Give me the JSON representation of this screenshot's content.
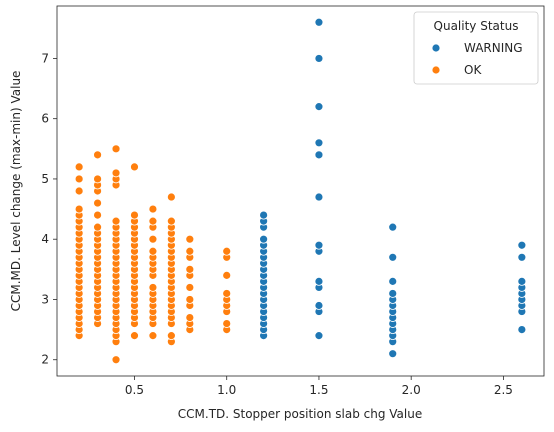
{
  "chart_data": {
    "type": "scatter",
    "title": "",
    "xlabel": "CCM.TD. Stopper position slab chg Value",
    "ylabel": "CCM.MD. Level change (max-min) Value",
    "xlim": [
      0.08,
      2.72
    ],
    "ylim": [
      1.73,
      7.87
    ],
    "xticks": [
      "0.5",
      "1.0",
      "1.5",
      "2.0",
      "2.5"
    ],
    "yticks": [
      "2",
      "3",
      "4",
      "5",
      "6",
      "7"
    ],
    "grid": false,
    "legend": {
      "title": "Quality Status",
      "placement": "top-right",
      "entries": [
        "WARNING",
        "OK"
      ]
    },
    "colors": {
      "WARNING": "#1f77b4",
      "OK": "#ff7f0e"
    },
    "series": [
      {
        "name": "OK",
        "color": "#ff7f0e",
        "points": [
          [
            0.2,
            2.4
          ],
          [
            0.2,
            2.5
          ],
          [
            0.2,
            2.6
          ],
          [
            0.2,
            2.7
          ],
          [
            0.2,
            2.8
          ],
          [
            0.2,
            2.9
          ],
          [
            0.2,
            3.0
          ],
          [
            0.2,
            3.1
          ],
          [
            0.2,
            3.2
          ],
          [
            0.2,
            3.3
          ],
          [
            0.2,
            3.4
          ],
          [
            0.2,
            3.5
          ],
          [
            0.2,
            3.6
          ],
          [
            0.2,
            3.7
          ],
          [
            0.2,
            3.8
          ],
          [
            0.2,
            3.9
          ],
          [
            0.2,
            4.0
          ],
          [
            0.2,
            4.1
          ],
          [
            0.2,
            4.2
          ],
          [
            0.2,
            4.3
          ],
          [
            0.2,
            4.4
          ],
          [
            0.2,
            4.5
          ],
          [
            0.2,
            4.8
          ],
          [
            0.2,
            5.0
          ],
          [
            0.2,
            5.2
          ],
          [
            0.3,
            2.6
          ],
          [
            0.3,
            2.7
          ],
          [
            0.3,
            2.8
          ],
          [
            0.3,
            2.9
          ],
          [
            0.3,
            3.0
          ],
          [
            0.3,
            3.1
          ],
          [
            0.3,
            3.2
          ],
          [
            0.3,
            3.3
          ],
          [
            0.3,
            3.4
          ],
          [
            0.3,
            3.5
          ],
          [
            0.3,
            3.6
          ],
          [
            0.3,
            3.7
          ],
          [
            0.3,
            3.8
          ],
          [
            0.3,
            3.9
          ],
          [
            0.3,
            4.0
          ],
          [
            0.3,
            4.1
          ],
          [
            0.3,
            4.2
          ],
          [
            0.3,
            4.4
          ],
          [
            0.3,
            4.6
          ],
          [
            0.3,
            4.8
          ],
          [
            0.3,
            4.9
          ],
          [
            0.3,
            5.0
          ],
          [
            0.3,
            5.4
          ],
          [
            0.4,
            2.0
          ],
          [
            0.4,
            2.3
          ],
          [
            0.4,
            2.4
          ],
          [
            0.4,
            2.5
          ],
          [
            0.4,
            2.6
          ],
          [
            0.4,
            2.7
          ],
          [
            0.4,
            2.8
          ],
          [
            0.4,
            2.9
          ],
          [
            0.4,
            3.0
          ],
          [
            0.4,
            3.1
          ],
          [
            0.4,
            3.2
          ],
          [
            0.4,
            3.3
          ],
          [
            0.4,
            3.4
          ],
          [
            0.4,
            3.5
          ],
          [
            0.4,
            3.6
          ],
          [
            0.4,
            3.7
          ],
          [
            0.4,
            3.8
          ],
          [
            0.4,
            3.9
          ],
          [
            0.4,
            4.0
          ],
          [
            0.4,
            4.1
          ],
          [
            0.4,
            4.2
          ],
          [
            0.4,
            4.3
          ],
          [
            0.4,
            4.9
          ],
          [
            0.4,
            5.0
          ],
          [
            0.4,
            5.1
          ],
          [
            0.4,
            5.5
          ],
          [
            0.5,
            2.4
          ],
          [
            0.5,
            2.6
          ],
          [
            0.5,
            2.7
          ],
          [
            0.5,
            2.8
          ],
          [
            0.5,
            2.9
          ],
          [
            0.5,
            3.0
          ],
          [
            0.5,
            3.1
          ],
          [
            0.5,
            3.2
          ],
          [
            0.5,
            3.3
          ],
          [
            0.5,
            3.4
          ],
          [
            0.5,
            3.5
          ],
          [
            0.5,
            3.6
          ],
          [
            0.5,
            3.7
          ],
          [
            0.5,
            3.8
          ],
          [
            0.5,
            3.9
          ],
          [
            0.5,
            4.0
          ],
          [
            0.5,
            4.1
          ],
          [
            0.5,
            4.2
          ],
          [
            0.5,
            4.3
          ],
          [
            0.5,
            4.4
          ],
          [
            0.5,
            5.2
          ],
          [
            0.6,
            2.4
          ],
          [
            0.6,
            2.6
          ],
          [
            0.6,
            2.7
          ],
          [
            0.6,
            2.8
          ],
          [
            0.6,
            2.9
          ],
          [
            0.6,
            3.0
          ],
          [
            0.6,
            3.1
          ],
          [
            0.6,
            3.2
          ],
          [
            0.6,
            3.4
          ],
          [
            0.6,
            3.5
          ],
          [
            0.6,
            3.6
          ],
          [
            0.6,
            3.7
          ],
          [
            0.6,
            3.8
          ],
          [
            0.6,
            4.0
          ],
          [
            0.6,
            4.2
          ],
          [
            0.6,
            4.3
          ],
          [
            0.6,
            4.5
          ],
          [
            0.7,
            2.3
          ],
          [
            0.7,
            2.4
          ],
          [
            0.7,
            2.6
          ],
          [
            0.7,
            2.7
          ],
          [
            0.7,
            2.8
          ],
          [
            0.7,
            2.9
          ],
          [
            0.7,
            3.0
          ],
          [
            0.7,
            3.1
          ],
          [
            0.7,
            3.2
          ],
          [
            0.7,
            3.3
          ],
          [
            0.7,
            3.4
          ],
          [
            0.7,
            3.5
          ],
          [
            0.7,
            3.6
          ],
          [
            0.7,
            3.7
          ],
          [
            0.7,
            3.8
          ],
          [
            0.7,
            3.9
          ],
          [
            0.7,
            4.0
          ],
          [
            0.7,
            4.1
          ],
          [
            0.7,
            4.2
          ],
          [
            0.7,
            4.3
          ],
          [
            0.7,
            4.7
          ],
          [
            0.8,
            2.5
          ],
          [
            0.8,
            2.6
          ],
          [
            0.8,
            2.7
          ],
          [
            0.8,
            2.9
          ],
          [
            0.8,
            3.0
          ],
          [
            0.8,
            3.2
          ],
          [
            0.8,
            3.4
          ],
          [
            0.8,
            3.5
          ],
          [
            0.8,
            3.7
          ],
          [
            0.8,
            3.8
          ],
          [
            0.8,
            4.0
          ],
          [
            1.0,
            2.5
          ],
          [
            1.0,
            2.6
          ],
          [
            1.0,
            2.8
          ],
          [
            1.0,
            2.9
          ],
          [
            1.0,
            3.0
          ],
          [
            1.0,
            3.1
          ],
          [
            1.0,
            3.4
          ],
          [
            1.0,
            3.7
          ],
          [
            1.0,
            3.8
          ]
        ]
      },
      {
        "name": "WARNING",
        "color": "#1f77b4",
        "points": [
          [
            1.2,
            2.4
          ],
          [
            1.2,
            2.5
          ],
          [
            1.2,
            2.6
          ],
          [
            1.2,
            2.7
          ],
          [
            1.2,
            2.8
          ],
          [
            1.2,
            2.9
          ],
          [
            1.2,
            3.0
          ],
          [
            1.2,
            3.1
          ],
          [
            1.2,
            3.2
          ],
          [
            1.2,
            3.3
          ],
          [
            1.2,
            3.4
          ],
          [
            1.2,
            3.5
          ],
          [
            1.2,
            3.6
          ],
          [
            1.2,
            3.7
          ],
          [
            1.2,
            3.8
          ],
          [
            1.2,
            3.9
          ],
          [
            1.2,
            4.0
          ],
          [
            1.2,
            4.2
          ],
          [
            1.2,
            4.3
          ],
          [
            1.2,
            4.4
          ],
          [
            1.5,
            2.4
          ],
          [
            1.5,
            2.8
          ],
          [
            1.5,
            2.9
          ],
          [
            1.5,
            3.2
          ],
          [
            1.5,
            3.3
          ],
          [
            1.5,
            3.8
          ],
          [
            1.5,
            3.9
          ],
          [
            1.5,
            4.7
          ],
          [
            1.5,
            5.4
          ],
          [
            1.5,
            5.6
          ],
          [
            1.5,
            6.2
          ],
          [
            1.5,
            7.0
          ],
          [
            1.5,
            7.6
          ],
          [
            1.9,
            2.1
          ],
          [
            1.9,
            2.3
          ],
          [
            1.9,
            2.4
          ],
          [
            1.9,
            2.5
          ],
          [
            1.9,
            2.6
          ],
          [
            1.9,
            2.7
          ],
          [
            1.9,
            2.8
          ],
          [
            1.9,
            2.9
          ],
          [
            1.9,
            3.0
          ],
          [
            1.9,
            3.1
          ],
          [
            1.9,
            3.3
          ],
          [
            1.9,
            3.7
          ],
          [
            1.9,
            4.2
          ],
          [
            2.6,
            2.5
          ],
          [
            2.6,
            2.8
          ],
          [
            2.6,
            2.9
          ],
          [
            2.6,
            3.0
          ],
          [
            2.6,
            3.1
          ],
          [
            2.6,
            3.2
          ],
          [
            2.6,
            3.3
          ],
          [
            2.6,
            3.7
          ],
          [
            2.6,
            3.9
          ]
        ]
      }
    ]
  }
}
